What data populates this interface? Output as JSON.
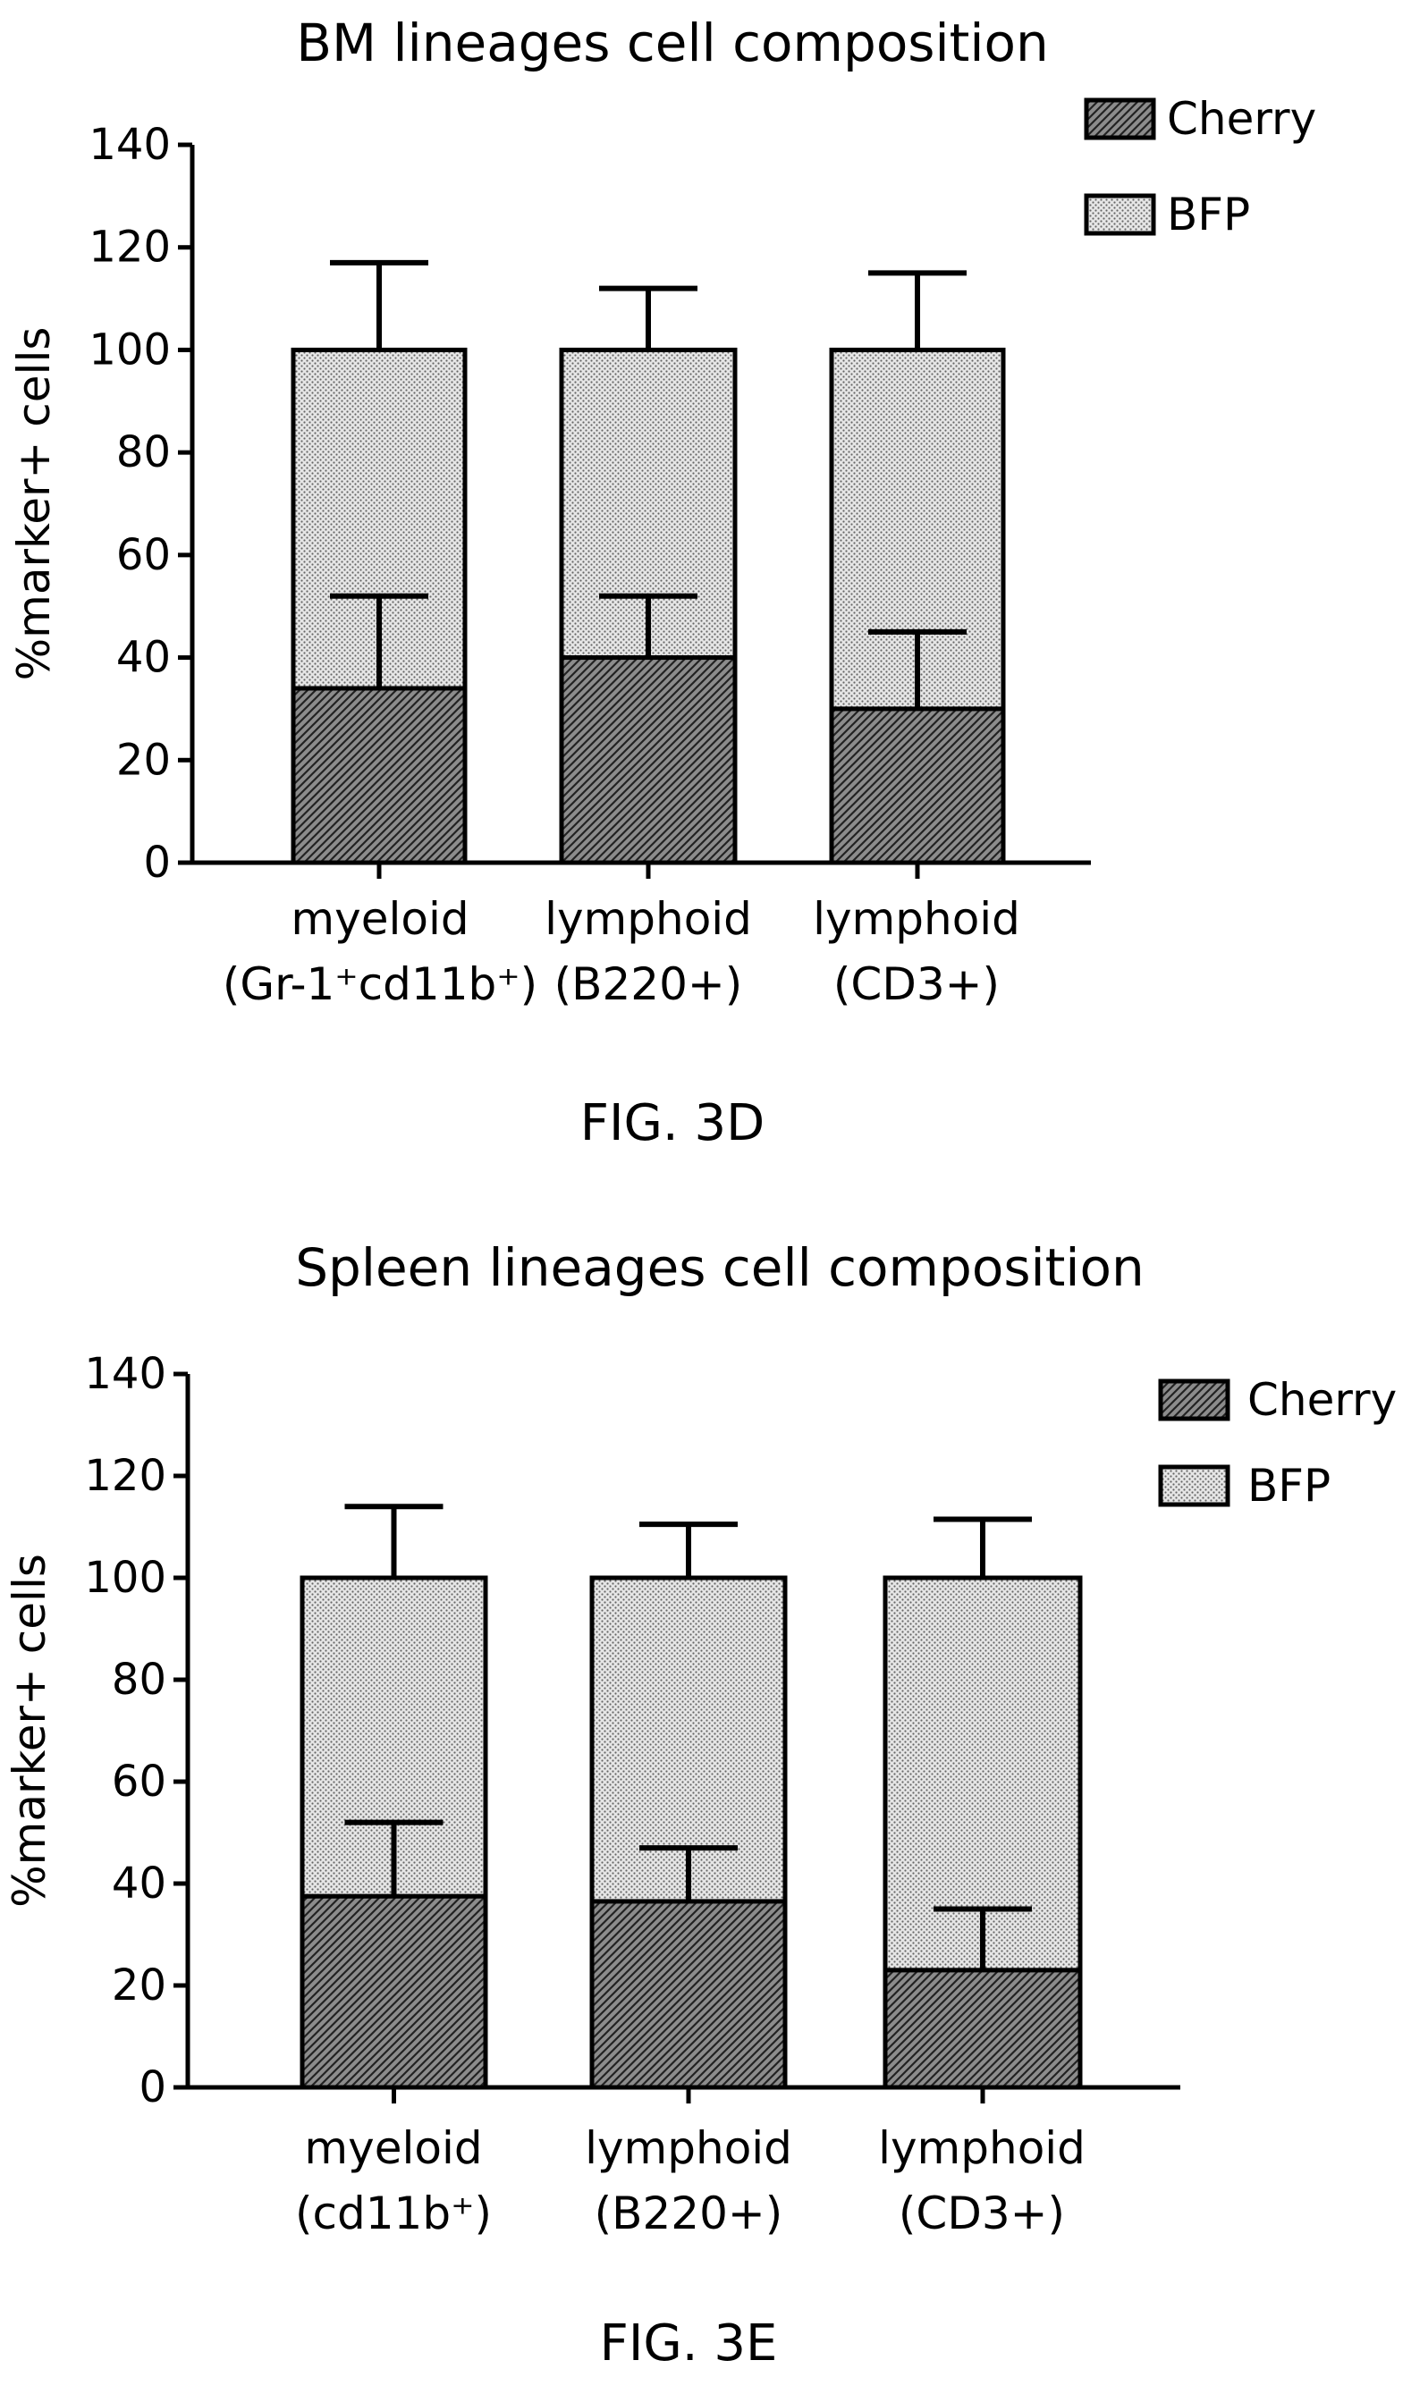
{
  "chart_data": [
    {
      "type": "bar",
      "stacked": true,
      "title": "BM lineages cell composition",
      "figure_label": "FIG. 3D",
      "ylabel": "%marker+ cells",
      "ylim": [
        0,
        140
      ],
      "yticks": [
        0,
        20,
        40,
        60,
        80,
        100,
        120,
        140
      ],
      "legend_position": "top-right",
      "categories": [
        {
          "line1": "myeloid",
          "line2": "(Gr-1⁺cd11b⁺)"
        },
        {
          "line1": "lymphoid",
          "line2": "(B220+)"
        },
        {
          "line1": "lymphoid",
          "line2": "(CD3+)"
        }
      ],
      "series": [
        {
          "name": "Cherry",
          "pattern": "hatch",
          "values": [
            34,
            40,
            30
          ],
          "errors": [
            18,
            12,
            15
          ]
        },
        {
          "name": "BFP",
          "pattern": "dots",
          "values": [
            66,
            60,
            70
          ],
          "errors": [
            17,
            12,
            15
          ]
        }
      ]
    },
    {
      "type": "bar",
      "stacked": true,
      "title": "Spleen lineages cell composition",
      "figure_label": "FIG. 3E",
      "ylabel": "%marker+ cells",
      "ylim": [
        0,
        140
      ],
      "yticks": [
        0,
        20,
        40,
        60,
        80,
        100,
        120,
        140
      ],
      "legend_position": "top-right",
      "categories": [
        {
          "line1": "myeloid",
          "line2": "(cd11b⁺)"
        },
        {
          "line1": "lymphoid",
          "line2": "(B220+)"
        },
        {
          "line1": "lymphoid",
          "line2": "(CD3+)"
        }
      ],
      "series": [
        {
          "name": "Cherry",
          "pattern": "hatch",
          "values": [
            37.5,
            36.5,
            23
          ],
          "errors": [
            14.5,
            10.5,
            12
          ]
        },
        {
          "name": "BFP",
          "pattern": "dots",
          "values": [
            62.5,
            63.5,
            77
          ],
          "errors": [
            14,
            10.5,
            11.5
          ]
        }
      ]
    }
  ]
}
